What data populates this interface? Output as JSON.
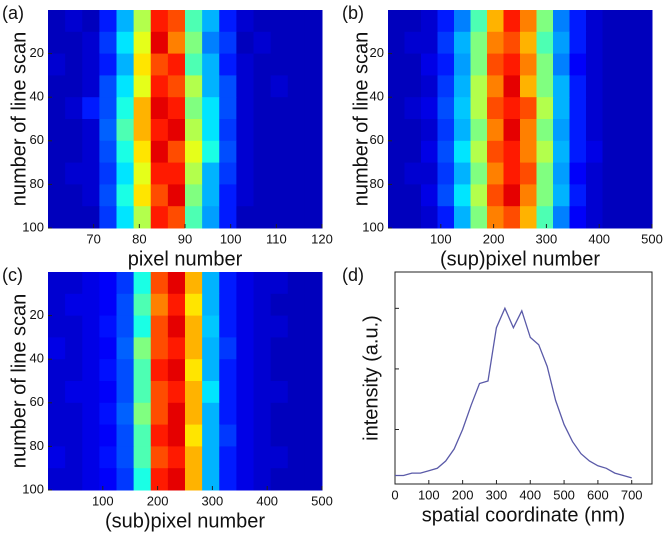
{
  "chart_data": [
    {
      "type": "heatmap",
      "panel_label": "(a)",
      "xlabel": "pixel number",
      "ylabel": "number of line scan",
      "xlim": [
        60,
        120
      ],
      "ylim": [
        0,
        100
      ],
      "y_reversed": true,
      "xticks": [
        70,
        80,
        90,
        100,
        110,
        120
      ],
      "yticks": [
        20,
        40,
        60,
        80,
        100
      ],
      "z": [
        [
          0.06,
          0.08,
          0.06,
          0.15,
          0.3,
          0.55,
          0.85,
          0.8,
          0.45,
          0.3,
          0.15,
          0.08,
          0.06,
          0.06,
          0.06,
          0.06
        ],
        [
          0.06,
          0.06,
          0.08,
          0.18,
          0.35,
          0.6,
          0.9,
          0.75,
          0.5,
          0.25,
          0.18,
          0.06,
          0.08,
          0.06,
          0.06,
          0.06
        ],
        [
          0.08,
          0.06,
          0.08,
          0.15,
          0.3,
          0.65,
          0.8,
          0.85,
          0.45,
          0.3,
          0.15,
          0.08,
          0.06,
          0.06,
          0.06,
          0.06
        ],
        [
          0.06,
          0.06,
          0.08,
          0.2,
          0.35,
          0.6,
          0.85,
          0.8,
          0.55,
          0.3,
          0.2,
          0.08,
          0.06,
          0.08,
          0.06,
          0.06
        ],
        [
          0.06,
          0.08,
          0.15,
          0.2,
          0.4,
          0.7,
          0.9,
          0.85,
          0.5,
          0.35,
          0.2,
          0.08,
          0.06,
          0.06,
          0.06,
          0.06
        ],
        [
          0.06,
          0.06,
          0.08,
          0.22,
          0.45,
          0.7,
          0.85,
          0.9,
          0.55,
          0.35,
          0.18,
          0.08,
          0.06,
          0.06,
          0.06,
          0.06
        ],
        [
          0.06,
          0.06,
          0.08,
          0.2,
          0.4,
          0.65,
          0.9,
          0.8,
          0.6,
          0.4,
          0.2,
          0.08,
          0.06,
          0.06,
          0.06,
          0.06
        ],
        [
          0.06,
          0.08,
          0.08,
          0.18,
          0.35,
          0.6,
          0.85,
          0.85,
          0.55,
          0.3,
          0.18,
          0.08,
          0.06,
          0.06,
          0.06,
          0.06
        ],
        [
          0.06,
          0.06,
          0.08,
          0.2,
          0.4,
          0.65,
          0.8,
          0.9,
          0.5,
          0.3,
          0.15,
          0.08,
          0.06,
          0.06,
          0.06,
          0.06
        ],
        [
          0.06,
          0.06,
          0.06,
          0.18,
          0.35,
          0.55,
          0.85,
          0.8,
          0.45,
          0.28,
          0.15,
          0.06,
          0.06,
          0.06,
          0.06,
          0.06
        ]
      ]
    },
    {
      "type": "heatmap",
      "panel_label": "(b)",
      "xlabel": "(sup)pixel number",
      "ylabel": "number of line scan",
      "xlim": [
        0,
        500
      ],
      "ylim": [
        0,
        100
      ],
      "y_reversed": true,
      "xticks": [
        100,
        200,
        300,
        400,
        500
      ],
      "yticks": [
        20,
        40,
        60,
        80,
        100
      ],
      "z": [
        [
          0.06,
          0.06,
          0.08,
          0.15,
          0.25,
          0.45,
          0.7,
          0.85,
          0.75,
          0.5,
          0.25,
          0.15,
          0.08,
          0.06,
          0.06,
          0.06
        ],
        [
          0.06,
          0.08,
          0.08,
          0.18,
          0.3,
          0.5,
          0.75,
          0.8,
          0.7,
          0.45,
          0.28,
          0.15,
          0.08,
          0.06,
          0.06,
          0.06
        ],
        [
          0.06,
          0.06,
          0.1,
          0.15,
          0.28,
          0.5,
          0.8,
          0.85,
          0.75,
          0.5,
          0.25,
          0.12,
          0.08,
          0.06,
          0.06,
          0.06
        ],
        [
          0.06,
          0.06,
          0.08,
          0.18,
          0.3,
          0.55,
          0.75,
          0.9,
          0.7,
          0.5,
          0.3,
          0.15,
          0.08,
          0.06,
          0.06,
          0.06
        ],
        [
          0.06,
          0.08,
          0.1,
          0.2,
          0.32,
          0.55,
          0.8,
          0.85,
          0.8,
          0.55,
          0.3,
          0.15,
          0.08,
          0.06,
          0.06,
          0.06
        ],
        [
          0.06,
          0.06,
          0.08,
          0.18,
          0.3,
          0.5,
          0.75,
          0.9,
          0.75,
          0.5,
          0.28,
          0.15,
          0.08,
          0.06,
          0.06,
          0.06
        ],
        [
          0.06,
          0.06,
          0.1,
          0.2,
          0.35,
          0.55,
          0.8,
          0.85,
          0.75,
          0.55,
          0.3,
          0.15,
          0.1,
          0.06,
          0.06,
          0.06
        ],
        [
          0.06,
          0.08,
          0.08,
          0.18,
          0.3,
          0.5,
          0.75,
          0.85,
          0.8,
          0.5,
          0.28,
          0.12,
          0.08,
          0.06,
          0.06,
          0.06
        ],
        [
          0.06,
          0.06,
          0.1,
          0.2,
          0.35,
          0.55,
          0.8,
          0.9,
          0.75,
          0.5,
          0.3,
          0.15,
          0.08,
          0.06,
          0.06,
          0.06
        ],
        [
          0.06,
          0.06,
          0.08,
          0.15,
          0.3,
          0.5,
          0.75,
          0.8,
          0.7,
          0.45,
          0.25,
          0.12,
          0.08,
          0.06,
          0.06,
          0.06
        ]
      ]
    },
    {
      "type": "heatmap",
      "panel_label": "(c)",
      "xlabel": "(sub)pixel number",
      "ylabel": "number of line scan",
      "xlim": [
        0,
        500
      ],
      "ylim": [
        0,
        100
      ],
      "y_reversed": true,
      "xticks": [
        100,
        200,
        300,
        400,
        500
      ],
      "yticks": [
        20,
        40,
        60,
        80,
        100
      ],
      "z": [
        [
          0.08,
          0.08,
          0.1,
          0.12,
          0.18,
          0.4,
          0.8,
          0.9,
          0.7,
          0.3,
          0.15,
          0.1,
          0.08,
          0.08,
          0.06,
          0.06
        ],
        [
          0.08,
          0.1,
          0.1,
          0.12,
          0.2,
          0.45,
          0.75,
          0.85,
          0.65,
          0.3,
          0.15,
          0.1,
          0.08,
          0.06,
          0.06,
          0.06
        ],
        [
          0.08,
          0.08,
          0.1,
          0.14,
          0.2,
          0.4,
          0.8,
          0.9,
          0.7,
          0.32,
          0.15,
          0.1,
          0.08,
          0.08,
          0.06,
          0.06
        ],
        [
          0.1,
          0.08,
          0.1,
          0.12,
          0.22,
          0.5,
          0.8,
          0.85,
          0.7,
          0.3,
          0.18,
          0.1,
          0.08,
          0.06,
          0.06,
          0.06
        ],
        [
          0.08,
          0.08,
          0.1,
          0.14,
          0.2,
          0.45,
          0.85,
          0.9,
          0.65,
          0.3,
          0.15,
          0.1,
          0.08,
          0.06,
          0.06,
          0.06
        ],
        [
          0.08,
          0.1,
          0.1,
          0.12,
          0.2,
          0.45,
          0.8,
          0.85,
          0.7,
          0.35,
          0.15,
          0.1,
          0.08,
          0.08,
          0.06,
          0.06
        ],
        [
          0.08,
          0.08,
          0.1,
          0.14,
          0.22,
          0.5,
          0.8,
          0.9,
          0.7,
          0.3,
          0.15,
          0.1,
          0.08,
          0.06,
          0.06,
          0.06
        ],
        [
          0.08,
          0.08,
          0.1,
          0.12,
          0.2,
          0.45,
          0.85,
          0.9,
          0.65,
          0.3,
          0.18,
          0.1,
          0.08,
          0.06,
          0.06,
          0.06
        ],
        [
          0.1,
          0.08,
          0.1,
          0.14,
          0.2,
          0.45,
          0.8,
          0.85,
          0.7,
          0.3,
          0.15,
          0.1,
          0.08,
          0.08,
          0.06,
          0.06
        ],
        [
          0.08,
          0.08,
          0.1,
          0.12,
          0.18,
          0.4,
          0.85,
          0.9,
          0.7,
          0.3,
          0.15,
          0.1,
          0.08,
          0.06,
          0.06,
          0.06
        ]
      ]
    },
    {
      "type": "line",
      "panel_label": "(d)",
      "xlabel": "spatial coordinate (nm)",
      "ylabel": "intensity (a.u.)",
      "color": "#5a5aa8",
      "xlim": [
        0,
        760
      ],
      "ylim": [
        0.275,
        1.15
      ],
      "xticks": [
        0,
        100,
        200,
        300,
        400,
        500,
        600,
        700
      ],
      "yticks": [
        0.5,
        0.75,
        1
      ],
      "ytick_labels": false,
      "x": [
        0,
        25,
        50,
        75,
        100,
        125,
        150,
        175,
        200,
        225,
        250,
        275,
        300,
        325,
        350,
        375,
        400,
        425,
        450,
        475,
        500,
        525,
        550,
        575,
        600,
        625,
        650,
        675,
        700
      ],
      "values": [
        0.31,
        0.31,
        0.32,
        0.32,
        0.33,
        0.34,
        0.37,
        0.42,
        0.5,
        0.6,
        0.69,
        0.7,
        0.92,
        1.0,
        0.92,
        0.99,
        0.88,
        0.85,
        0.76,
        0.62,
        0.52,
        0.45,
        0.4,
        0.37,
        0.35,
        0.34,
        0.32,
        0.31,
        0.3
      ]
    }
  ]
}
